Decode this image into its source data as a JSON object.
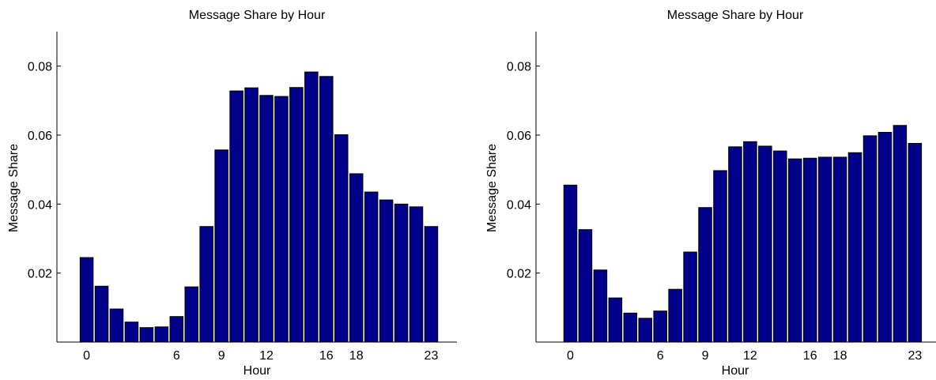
{
  "colors": {
    "bar": "#00008b"
  },
  "chart_data": [
    {
      "type": "bar",
      "title": "Message Share by Hour",
      "xlabel": "Hour",
      "ylabel": "Message Share",
      "x": [
        0,
        1,
        2,
        3,
        4,
        5,
        6,
        7,
        8,
        9,
        10,
        11,
        12,
        13,
        14,
        15,
        16,
        17,
        18,
        19,
        20,
        21,
        22,
        23
      ],
      "values": [
        0.0245,
        0.0162,
        0.0096,
        0.0058,
        0.0042,
        0.0044,
        0.0074,
        0.016,
        0.0335,
        0.0557,
        0.0728,
        0.0737,
        0.0715,
        0.0712,
        0.0738,
        0.0783,
        0.077,
        0.0601,
        0.0488,
        0.0435,
        0.0412,
        0.04,
        0.0392,
        0.0335
      ],
      "xticks": [
        0,
        6,
        9,
        12,
        16,
        18,
        23
      ],
      "yticks": [
        0.02,
        0.04,
        0.06,
        0.08
      ],
      "ytick_labels": [
        "0.02",
        "0.04",
        "0.06",
        "0.08"
      ],
      "ylim": [
        0,
        0.09
      ],
      "grid": false
    },
    {
      "type": "bar",
      "title": "Message Share by Hour",
      "xlabel": "Hour",
      "ylabel": "Message Share",
      "x": [
        0,
        1,
        2,
        3,
        4,
        5,
        6,
        7,
        8,
        9,
        10,
        11,
        12,
        13,
        14,
        15,
        16,
        17,
        18,
        19,
        20,
        21,
        22,
        23
      ],
      "values": [
        0.0455,
        0.0326,
        0.0209,
        0.0128,
        0.0084,
        0.0069,
        0.009,
        0.0153,
        0.0261,
        0.039,
        0.0497,
        0.0566,
        0.0581,
        0.0568,
        0.0554,
        0.0531,
        0.0533,
        0.0536,
        0.0536,
        0.0549,
        0.0598,
        0.0608,
        0.0628,
        0.0576
      ],
      "xticks": [
        0,
        6,
        9,
        12,
        16,
        18,
        23
      ],
      "yticks": [
        0.02,
        0.04,
        0.06,
        0.08
      ],
      "ytick_labels": [
        "0.02",
        "0.04",
        "0.06",
        "0.08"
      ],
      "ylim": [
        0,
        0.09
      ],
      "grid": false
    }
  ]
}
